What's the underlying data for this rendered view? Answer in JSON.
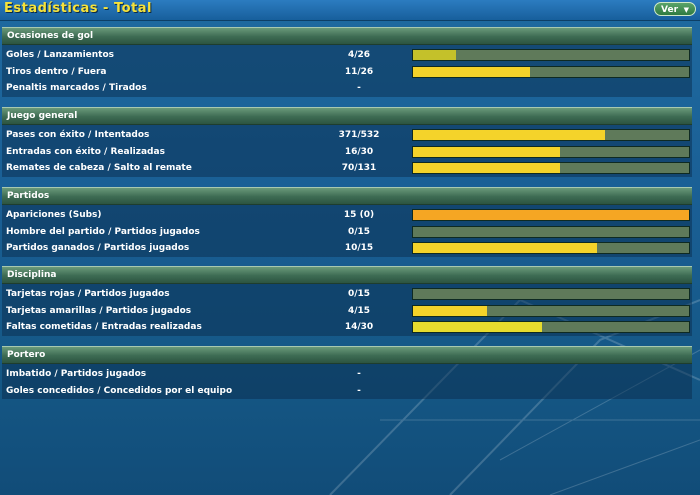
{
  "title": "Estadísticas - Total",
  "menu": {
    "ver_label": "Ver",
    "caret": "▼"
  },
  "colors": {
    "track": "#5f7a5a",
    "fill_yellow": "#f4d32a",
    "fill_olive": "#c4c12a",
    "fill_orange": "#f5a623"
  },
  "sections": [
    {
      "title": "Ocasiones de gol",
      "rows": [
        {
          "label": "Goles / Lanzamientos",
          "value": "4/26",
          "bar": true,
          "fraction": 0.154,
          "fill_color": "#c4c12a"
        },
        {
          "label": "Tiros dentro / Fuera",
          "value": "11/26",
          "bar": true,
          "fraction": 0.423,
          "fill_color": "#f4d32a"
        },
        {
          "label": "Penaltis marcados / Tirados",
          "value": "-",
          "bar": false
        }
      ]
    },
    {
      "title": "Juego general",
      "rows": [
        {
          "label": "Pases con éxito / Intentados",
          "value": "371/532",
          "bar": true,
          "fraction": 0.697,
          "fill_color": "#f4d32a"
        },
        {
          "label": "Entradas con éxito / Realizadas",
          "value": "16/30",
          "bar": true,
          "fraction": 0.533,
          "fill_color": "#f4d32a"
        },
        {
          "label": "Remates de cabeza / Salto al remate",
          "value": "70/131",
          "bar": true,
          "fraction": 0.534,
          "fill_color": "#f4d32a"
        }
      ]
    },
    {
      "title": "Partidos",
      "rows": [
        {
          "label": "Apariciones (Subs)",
          "value": "15 (0)",
          "bar": true,
          "fraction": 1.0,
          "fill_color": "#f5a623"
        },
        {
          "label": "Hombre del partido / Partidos jugados",
          "value": "0/15",
          "bar": true,
          "fraction": 0.0,
          "fill_color": "#f4d32a"
        },
        {
          "label": "Partidos ganados / Partidos jugados",
          "value": "10/15",
          "bar": true,
          "fraction": 0.667,
          "fill_color": "#f4d32a"
        }
      ]
    },
    {
      "title": "Disciplina",
      "rows": [
        {
          "label": "Tarjetas rojas / Partidos jugados",
          "value": "0/15",
          "bar": true,
          "fraction": 0.0,
          "fill_color": "#f4d32a"
        },
        {
          "label": "Tarjetas amarillas / Partidos jugados",
          "value": "4/15",
          "bar": true,
          "fraction": 0.267,
          "fill_color": "#f4d32a"
        },
        {
          "label": "Faltas cometidas / Entradas realizadas",
          "value": "14/30",
          "bar": true,
          "fraction": 0.467,
          "fill_color": "#e6dc2e"
        }
      ]
    },
    {
      "title": "Portero",
      "rows": [
        {
          "label": "Imbatido / Partidos jugados",
          "value": "-",
          "bar": false
        },
        {
          "label": "Goles concedidos / Concedidos por el equipo",
          "value": "-",
          "bar": false
        }
      ]
    }
  ]
}
